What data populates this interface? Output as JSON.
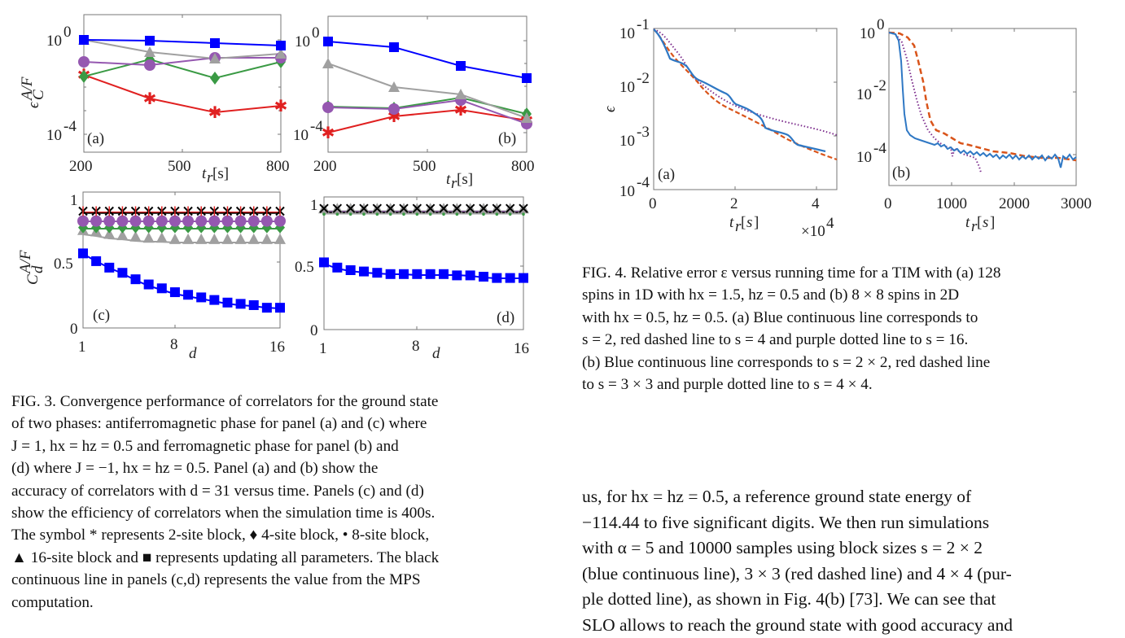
{
  "fig3": {
    "caption": {
      "lines": [
        "FIG. 3. Convergence performance of correlators for the ground state",
        "of two phases:  antiferromagnetic phase for panel (a) and (c) where",
        "J = 1, hx = hz = 0.5 and ferromagnetic phase for panel (b) and",
        "(d) where J = −1, hx = hz = 0.5.  Panel (a) and (b) show the",
        "accuracy of correlators with d = 31 versus time.  Panels (c) and (d)",
        "show the efficiency of correlators when the simulation time is 400s.",
        "The symbol * represents 2-site block, ♦ 4-site block, • 8-site block,",
        "▲ 16-site block and ■ represents updating all parameters. The black",
        "continuous line in panels (c,d) represents the value from the MPS",
        "computation."
      ]
    }
  },
  "fig4": {
    "caption": {
      "lines": [
        "FIG. 4. Relative error ε versus running time for a TIM with (a) 128",
        "spins in 1D with hx = 1.5, hz = 0.5 and (b) 8 × 8 spins in 2D",
        "with hx = 0.5, hz = 0.5. (a) Blue continuous line corresponds to",
        "s = 2, red dashed line to s = 4 and purple dotted line to s = 16.",
        "(b) Blue continuous line corresponds to s = 2 × 2, red dashed line",
        "to s = 3 × 3 and purple dotted line to s = 4 × 4."
      ]
    }
  },
  "body_text": {
    "lines": [
      "us, for hx = hz = 0.5, a reference ground state energy of",
      "−114.44 to five significant digits.  We then run simulations",
      "with α = 5 and 10000 samples using block sizes s = 2 × 2",
      "(blue continuous line), 3 × 3 (red dashed line) and 4 × 4 (pur-",
      "ple dotted line), as shown in Fig. 4(b) [73].  We can see that",
      "SLO allows to reach the ground state with good accuracy and"
    ],
    "fig_ref": "4",
    "cite_ref": "73"
  },
  "colors": {
    "star_2site": "#e02020",
    "diamond_4site": "#3a9a44",
    "circle_8site": "#9558b0",
    "triangle_16site": "#999999",
    "square_all": "#0000ff",
    "mps_line": "#000000",
    "fig4_blue": "#2f78c4",
    "fig4_red": "#d9541a",
    "fig4_purple": "#7e2f8e",
    "fig_ref_link": "#e82020",
    "cite_link": "#3ee63e"
  },
  "chart_data": [
    {
      "id": "fig3a",
      "type": "line",
      "panel_label": "(a)",
      "xlabel": "t_r[s]",
      "ylabel": "ε_C^{A/F}",
      "yscale": "log",
      "xlim": [
        200,
        800
      ],
      "ylim": [
        1e-05,
        10
      ],
      "xticks": [
        "200",
        "500",
        "800"
      ],
      "yticks": [
        "10^0",
        "10^-4"
      ],
      "x": [
        200,
        400,
        600,
        800
      ],
      "series": [
        {
          "name": "2-site block (*)",
          "values": [
            0.04,
            0.0025,
            0.0007,
            0.0013
          ]
        },
        {
          "name": "4-site block (♦)",
          "values": [
            0.03,
            0.25,
            0.035,
            0.2
          ]
        },
        {
          "name": "8-site block (•)",
          "values": [
            0.2,
            0.15,
            0.3,
            0.32
          ]
        },
        {
          "name": "16-site block (▲)",
          "values": [
            1.0,
            0.45,
            0.3,
            0.5
          ]
        },
        {
          "name": "all parameters (■)",
          "values": [
            1.0,
            0.95,
            0.8,
            0.7
          ]
        }
      ]
    },
    {
      "id": "fig3b",
      "type": "line",
      "panel_label": "(b)",
      "xlabel": "t_r[s]",
      "yscale": "log",
      "xlim": [
        200,
        800
      ],
      "ylim": [
        1e-05,
        10
      ],
      "xticks": [
        "200",
        "500",
        "800"
      ],
      "yticks": [
        "10^0",
        "10^-4"
      ],
      "x": [
        200,
        400,
        600,
        800
      ],
      "series": [
        {
          "name": "2-site block (*)",
          "values": [
            0.0001,
            0.0006,
            0.0011,
            0.0004
          ]
        },
        {
          "name": "4-site block (♦)",
          "values": [
            0.0013,
            0.0012,
            0.003,
            0.0006
          ]
        },
        {
          "name": "8-site block (•)",
          "values": [
            0.0012,
            0.0011,
            0.0025,
            0.0003
          ]
        },
        {
          "name": "16-site block (▲)",
          "values": [
            0.2,
            0.01,
            0.005,
            0.0005
          ]
        },
        {
          "name": "all parameters (■)",
          "values": [
            1.0,
            0.6,
            0.1,
            0.035
          ]
        }
      ]
    },
    {
      "id": "fig3c",
      "type": "line",
      "panel_label": "(c)",
      "xlabel": "d",
      "ylabel": "C_d^{A/F}",
      "xlim": [
        1,
        16
      ],
      "ylim": [
        0,
        1.05
      ],
      "xticks": [
        "1",
        "8",
        "16"
      ],
      "yticks": [
        "0",
        "0.5",
        "1"
      ],
      "x": [
        1,
        2,
        3,
        4,
        5,
        6,
        7,
        8,
        9,
        10,
        11,
        12,
        13,
        14,
        15,
        16
      ],
      "series": [
        {
          "name": "MPS (black line, ×)",
          "values": [
            0.89,
            0.89,
            0.89,
            0.89,
            0.89,
            0.89,
            0.89,
            0.89,
            0.89,
            0.89,
            0.89,
            0.89,
            0.89,
            0.89,
            0.89,
            0.89
          ]
        },
        {
          "name": "2-site block (*)",
          "values": [
            0.89,
            0.89,
            0.89,
            0.89,
            0.89,
            0.89,
            0.89,
            0.89,
            0.89,
            0.89,
            0.89,
            0.89,
            0.89,
            0.89,
            0.89,
            0.89
          ]
        },
        {
          "name": "8-site block (•)",
          "values": [
            0.82,
            0.82,
            0.82,
            0.82,
            0.82,
            0.82,
            0.82,
            0.82,
            0.82,
            0.82,
            0.82,
            0.82,
            0.82,
            0.82,
            0.82,
            0.82
          ]
        },
        {
          "name": "4-site block (♦)",
          "values": [
            0.77,
            0.77,
            0.77,
            0.77,
            0.77,
            0.77,
            0.77,
            0.77,
            0.77,
            0.77,
            0.77,
            0.77,
            0.77,
            0.77,
            0.77,
            0.77
          ]
        },
        {
          "name": "16-site block (▲)",
          "values": [
            0.75,
            0.74,
            0.72,
            0.71,
            0.7,
            0.69,
            0.69,
            0.68,
            0.68,
            0.68,
            0.68,
            0.68,
            0.68,
            0.68,
            0.68,
            0.68
          ]
        },
        {
          "name": "all parameters (■)",
          "values": [
            0.57,
            0.51,
            0.46,
            0.42,
            0.37,
            0.33,
            0.3,
            0.27,
            0.25,
            0.23,
            0.21,
            0.19,
            0.18,
            0.17,
            0.15,
            0.15
          ]
        }
      ]
    },
    {
      "id": "fig3d",
      "type": "line",
      "panel_label": "(d)",
      "xlabel": "d",
      "xlim": [
        1,
        16
      ],
      "ylim": [
        0,
        1.05
      ],
      "xticks": [
        "1",
        "8",
        "16"
      ],
      "yticks": [
        "0",
        "0.5",
        "1"
      ],
      "x": [
        1,
        2,
        3,
        4,
        5,
        6,
        7,
        8,
        9,
        10,
        11,
        12,
        13,
        14,
        15,
        16
      ],
      "series": [
        {
          "name": "MPS and all blocks (overlapping)",
          "values": [
            0.93,
            0.93,
            0.93,
            0.93,
            0.93,
            0.93,
            0.93,
            0.93,
            0.93,
            0.93,
            0.93,
            0.93,
            0.93,
            0.93,
            0.93,
            0.93
          ]
        },
        {
          "name": "all parameters (■)",
          "values": [
            0.51,
            0.47,
            0.45,
            0.44,
            0.43,
            0.42,
            0.42,
            0.42,
            0.42,
            0.42,
            0.41,
            0.41,
            0.4,
            0.39,
            0.39,
            0.39
          ]
        }
      ]
    },
    {
      "id": "fig4a",
      "type": "line",
      "panel_label": "(a)",
      "xlabel": "t_r[s]",
      "ylabel": "ε",
      "yscale": "log",
      "x_multiplier": "×10^4",
      "xlim": [
        0,
        4.5
      ],
      "ylim": [
        0.0001,
        0.1
      ],
      "xticks": [
        "0",
        "2",
        "4"
      ],
      "yticks": [
        "10^-1",
        "10^-2",
        "10^-3",
        "10^-4"
      ],
      "series": [
        {
          "name": "s = 2 (blue continuous)",
          "x": [
            0,
            0.3,
            0.6,
            0.9,
            1.1,
            1.6,
            1.8,
            2.4,
            2.6,
            3.3,
            3.5,
            4.2
          ],
          "values": [
            0.1,
            0.05,
            0.022,
            0.012,
            0.01,
            0.006,
            0.004,
            0.0022,
            0.0015,
            0.001,
            0.00065,
            0.00048
          ]
        },
        {
          "name": "s = 4 (red dashed)",
          "x": [
            0,
            0.4,
            0.8,
            1.2,
            1.6,
            2.0,
            2.5,
            3.0,
            3.5,
            4.0,
            4.5
          ],
          "values": [
            0.1,
            0.03,
            0.012,
            0.006,
            0.0035,
            0.0025,
            0.0015,
            0.0009,
            0.0006,
            0.0004,
            0.00027
          ]
        },
        {
          "name": "s = 16 (purple dotted)",
          "x": [
            0,
            0.4,
            0.8,
            1.2,
            1.8,
            2.4,
            3.0,
            3.6,
            4.2,
            4.5
          ],
          "values": [
            0.1,
            0.05,
            0.02,
            0.01,
            0.0045,
            0.0033,
            0.0026,
            0.0019,
            0.0014,
            0.0012
          ]
        }
      ]
    },
    {
      "id": "fig4b",
      "type": "line",
      "panel_label": "(b)",
      "xlabel": "t_r[s]",
      "yscale": "log",
      "xlim": [
        0,
        3000
      ],
      "ylim": [
        1e-05,
        1
      ],
      "xticks": [
        "0",
        "1000",
        "2000",
        "3000"
      ],
      "yticks": [
        "10^0",
        "10^-2",
        "10^-4"
      ],
      "series": [
        {
          "name": "s = 2×2 (blue continuous)",
          "x": [
            0,
            100,
            180,
            220,
            260,
            320,
            500,
            800,
            1200,
            2000,
            2700,
            3000
          ],
          "values": [
            0.7,
            0.5,
            0.05,
            0.005,
            0.001,
            0.0006,
            0.0003,
            0.00018,
            0.00013,
            0.0001,
            8e-05,
            0.0001
          ]
        },
        {
          "name": "s = 3×3 (red dashed)",
          "x": [
            0,
            300,
            450,
            550,
            650,
            800,
            1000,
            1300,
            1800,
            2500,
            3000
          ],
          "values": [
            0.7,
            0.5,
            0.2,
            0.02,
            0.002,
            0.0006,
            0.0004,
            0.0002,
            0.00013,
            0.0001,
            8e-05
          ]
        },
        {
          "name": "s = 4×4 (purple dotted)",
          "x": [
            0,
            150,
            300,
            450,
            600,
            750,
            900,
            1100,
            1300,
            1450
          ],
          "values": [
            0.7,
            0.4,
            0.05,
            0.005,
            0.001,
            0.0004,
            0.0002,
            0.0001,
            8e-05,
            3e-05
          ]
        }
      ]
    }
  ]
}
